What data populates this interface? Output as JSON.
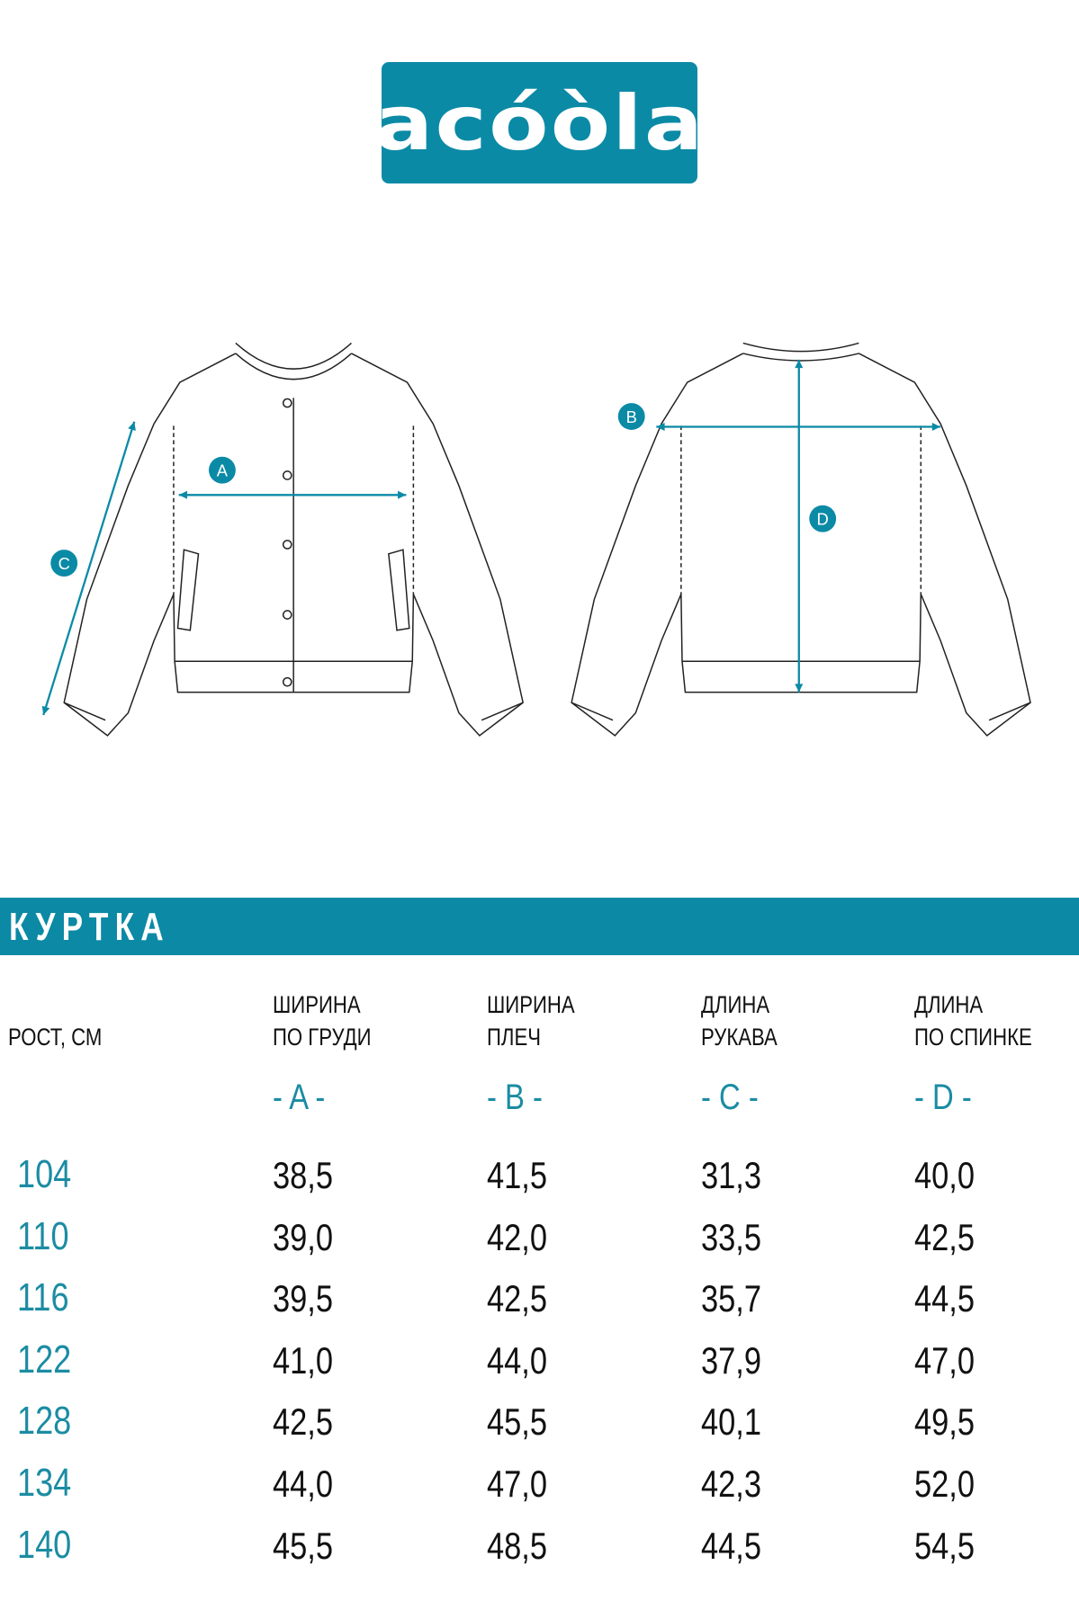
{
  "brand": {
    "logo_text": "acóòla",
    "color": "#0b8aa6"
  },
  "diagram": {
    "labels": [
      "A",
      "B",
      "C",
      "D"
    ],
    "accent": "#0b8aa6"
  },
  "product": {
    "title": "КУРТКА"
  },
  "table": {
    "first_header": "РОСТ, СМ",
    "columns": [
      {
        "line1": "ШИРИНА",
        "line2": "ПО ГРУДИ",
        "letter": "- A -"
      },
      {
        "line1": "ШИРИНА",
        "line2": "ПЛЕЧ",
        "letter": "- B -"
      },
      {
        "line1": "ДЛИНА",
        "line2": "РУКАВА",
        "letter": "- C -"
      },
      {
        "line1": "ДЛИНА",
        "line2": "ПО СПИНКЕ",
        "letter": "- D -"
      }
    ],
    "rows": [
      {
        "size": "104",
        "values": [
          "38,5",
          "41,5",
          "31,3",
          "40,0"
        ]
      },
      {
        "size": "110",
        "values": [
          "39,0",
          "42,0",
          "33,5",
          "42,5"
        ]
      },
      {
        "size": "116",
        "values": [
          "39,5",
          "42,5",
          "35,7",
          "44,5"
        ]
      },
      {
        "size": "122",
        "values": [
          "41,0",
          "44,0",
          "37,9",
          "47,0"
        ]
      },
      {
        "size": "128",
        "values": [
          "42,5",
          "45,5",
          "40,1",
          "49,5"
        ]
      },
      {
        "size": "134",
        "values": [
          "44,0",
          "47,0",
          "42,3",
          "52,0"
        ]
      },
      {
        "size": "140",
        "values": [
          "45,5",
          "48,5",
          "44,5",
          "54,5"
        ]
      }
    ]
  }
}
